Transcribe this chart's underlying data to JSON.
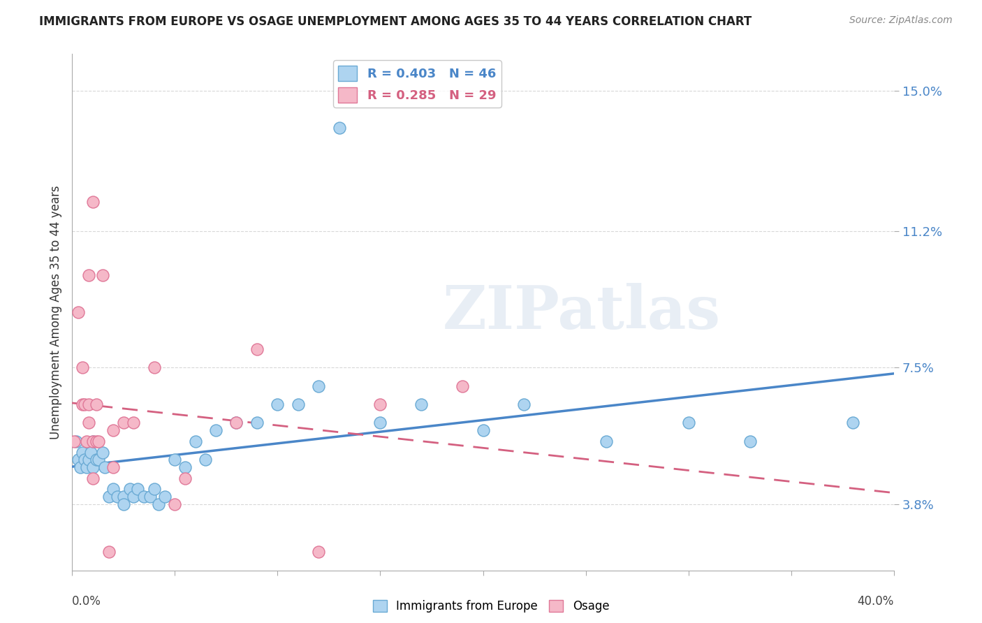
{
  "title": "IMMIGRANTS FROM EUROPE VS OSAGE UNEMPLOYMENT AMONG AGES 35 TO 44 YEARS CORRELATION CHART",
  "source": "Source: ZipAtlas.com",
  "ylabel": "Unemployment Among Ages 35 to 44 years",
  "xlim": [
    0,
    0.4
  ],
  "ylim": [
    0.02,
    0.16
  ],
  "yticks": [
    0.038,
    0.075,
    0.112,
    0.15
  ],
  "ytick_labels": [
    "3.8%",
    "7.5%",
    "11.2%",
    "15.0%"
  ],
  "xtick_left_label": "0.0%",
  "xtick_right_label": "40.0%",
  "blue_label": "Immigrants from Europe",
  "pink_label": "Osage",
  "blue_R": 0.403,
  "blue_N": 46,
  "pink_R": 0.285,
  "pink_N": 29,
  "blue_color": "#aed4f0",
  "pink_color": "#f5b8c8",
  "blue_edge_color": "#6aaad4",
  "pink_edge_color": "#e07898",
  "blue_line_color": "#4a86c8",
  "pink_line_color": "#d46080",
  "watermark_color": "#e8eef5",
  "bg_color": "#ffffff",
  "grid_color": "#d8d8d8",
  "blue_scatter_x": [
    0.002,
    0.003,
    0.004,
    0.005,
    0.006,
    0.007,
    0.008,
    0.009,
    0.01,
    0.01,
    0.012,
    0.013,
    0.015,
    0.016,
    0.018,
    0.02,
    0.022,
    0.025,
    0.025,
    0.028,
    0.03,
    0.032,
    0.035,
    0.038,
    0.04,
    0.042,
    0.045,
    0.05,
    0.055,
    0.06,
    0.065,
    0.07,
    0.08,
    0.09,
    0.1,
    0.11,
    0.12,
    0.13,
    0.15,
    0.17,
    0.2,
    0.22,
    0.26,
    0.3,
    0.33,
    0.38
  ],
  "blue_scatter_y": [
    0.055,
    0.05,
    0.048,
    0.052,
    0.05,
    0.048,
    0.05,
    0.052,
    0.055,
    0.048,
    0.05,
    0.05,
    0.052,
    0.048,
    0.04,
    0.042,
    0.04,
    0.04,
    0.038,
    0.042,
    0.04,
    0.042,
    0.04,
    0.04,
    0.042,
    0.038,
    0.04,
    0.05,
    0.048,
    0.055,
    0.05,
    0.058,
    0.06,
    0.06,
    0.065,
    0.065,
    0.07,
    0.14,
    0.06,
    0.065,
    0.058,
    0.065,
    0.055,
    0.06,
    0.055,
    0.06
  ],
  "pink_scatter_x": [
    0.001,
    0.003,
    0.005,
    0.005,
    0.006,
    0.007,
    0.008,
    0.008,
    0.008,
    0.01,
    0.01,
    0.01,
    0.012,
    0.012,
    0.013,
    0.015,
    0.018,
    0.02,
    0.02,
    0.025,
    0.03,
    0.04,
    0.05,
    0.055,
    0.08,
    0.09,
    0.12,
    0.15,
    0.19
  ],
  "pink_scatter_y": [
    0.055,
    0.09,
    0.065,
    0.075,
    0.065,
    0.055,
    0.06,
    0.065,
    0.1,
    0.045,
    0.055,
    0.12,
    0.055,
    0.065,
    0.055,
    0.1,
    0.025,
    0.058,
    0.048,
    0.06,
    0.06,
    0.075,
    0.038,
    0.045,
    0.06,
    0.08,
    0.025,
    0.065,
    0.07
  ]
}
